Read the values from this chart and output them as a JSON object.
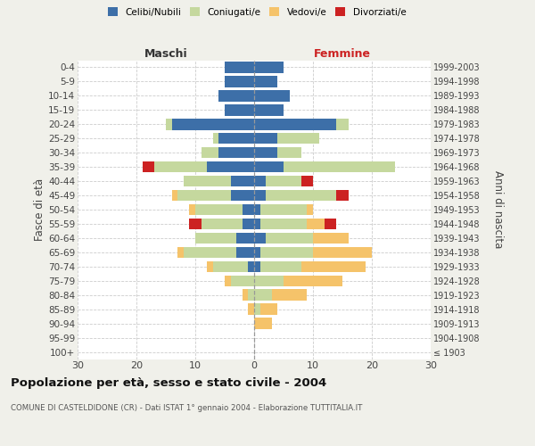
{
  "age_groups": [
    "100+",
    "95-99",
    "90-94",
    "85-89",
    "80-84",
    "75-79",
    "70-74",
    "65-69",
    "60-64",
    "55-59",
    "50-54",
    "45-49",
    "40-44",
    "35-39",
    "30-34",
    "25-29",
    "20-24",
    "15-19",
    "10-14",
    "5-9",
    "0-4"
  ],
  "birth_years": [
    "≤ 1903",
    "1904-1908",
    "1909-1913",
    "1914-1918",
    "1919-1923",
    "1924-1928",
    "1929-1933",
    "1934-1938",
    "1939-1943",
    "1944-1948",
    "1949-1953",
    "1954-1958",
    "1959-1963",
    "1964-1968",
    "1969-1973",
    "1974-1978",
    "1979-1983",
    "1984-1988",
    "1989-1993",
    "1994-1998",
    "1999-2003"
  ],
  "maschi": {
    "celibi": [
      0,
      0,
      0,
      0,
      0,
      0,
      1,
      3,
      3,
      2,
      2,
      4,
      4,
      8,
      6,
      6,
      14,
      5,
      6,
      5,
      5
    ],
    "coniugati": [
      0,
      0,
      0,
      0,
      1,
      4,
      6,
      9,
      7,
      7,
      8,
      9,
      8,
      9,
      3,
      1,
      1,
      0,
      0,
      0,
      0
    ],
    "vedovi": [
      0,
      0,
      0,
      1,
      1,
      1,
      1,
      1,
      0,
      0,
      1,
      1,
      0,
      0,
      0,
      0,
      0,
      0,
      0,
      0,
      0
    ],
    "divorziati": [
      0,
      0,
      0,
      0,
      0,
      0,
      0,
      0,
      0,
      2,
      0,
      0,
      0,
      2,
      0,
      0,
      0,
      0,
      0,
      0,
      0
    ]
  },
  "femmine": {
    "nubili": [
      0,
      0,
      0,
      0,
      0,
      0,
      1,
      1,
      2,
      1,
      1,
      2,
      2,
      5,
      4,
      4,
      14,
      5,
      6,
      4,
      5
    ],
    "coniugate": [
      0,
      0,
      0,
      1,
      3,
      5,
      7,
      9,
      8,
      8,
      8,
      12,
      6,
      19,
      4,
      7,
      2,
      0,
      0,
      0,
      0
    ],
    "vedove": [
      0,
      0,
      3,
      3,
      6,
      10,
      11,
      10,
      6,
      3,
      1,
      0,
      0,
      0,
      0,
      0,
      0,
      0,
      0,
      0,
      0
    ],
    "divorziate": [
      0,
      0,
      0,
      0,
      0,
      0,
      0,
      0,
      0,
      2,
      0,
      2,
      2,
      0,
      0,
      0,
      0,
      0,
      0,
      0,
      0
    ]
  },
  "colors": {
    "celibi": "#3d6fa8",
    "coniugati": "#c5d89e",
    "vedovi": "#f5c36a",
    "divorziati": "#cc2222"
  },
  "xlim": 30,
  "title": "Popolazione per età, sesso e stato civile - 2004",
  "subtitle": "COMUNE DI CASTELDIDONE (CR) - Dati ISTAT 1° gennaio 2004 - Elaborazione TUTTITALIA.IT",
  "ylabel_left": "Fasce di età",
  "ylabel_right": "Anni di nascita",
  "label_maschi": "Maschi",
  "label_femmine": "Femmine",
  "legend_labels": [
    "Celibi/Nubili",
    "Coniugati/e",
    "Vedovi/e",
    "Divorziati/e"
  ],
  "bg_color": "#f0f0ea",
  "plot_bg": "#ffffff"
}
